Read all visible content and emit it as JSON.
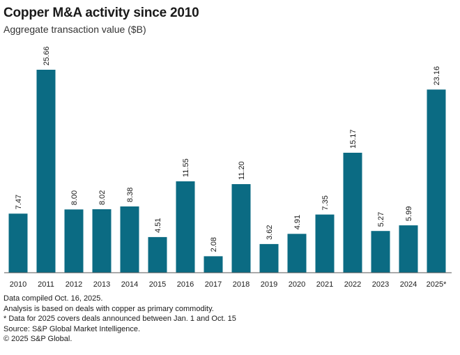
{
  "title": "Copper M&A activity since 2010",
  "subtitle": "Aggregate transaction value ($B)",
  "colors": {
    "bar": "#0b6b83",
    "axis": "#555555",
    "text": "#1a1a1a"
  },
  "chart_data": {
    "type": "bar",
    "title": "Copper M&A activity since 2010",
    "subtitle": "Aggregate transaction value ($B)",
    "xlabel": "",
    "ylabel": "",
    "ylim": [
      0,
      25.66
    ],
    "grid": false,
    "legend": "none",
    "categories": [
      "2010",
      "2011",
      "2012",
      "2013",
      "2014",
      "2015",
      "2016",
      "2017",
      "2018",
      "2019",
      "2020",
      "2021",
      "2022",
      "2023",
      "2024",
      "2025*"
    ],
    "values": [
      7.47,
      25.66,
      8.0,
      8.02,
      8.38,
      4.51,
      11.55,
      2.08,
      11.2,
      3.62,
      4.91,
      7.35,
      15.17,
      5.27,
      5.99,
      23.16
    ],
    "value_labels": [
      "7.47",
      "25.66",
      "8.00",
      "8.02",
      "8.38",
      "4.51",
      "11.55",
      "2.08",
      "11.20",
      "3.62",
      "4.91",
      "7.35",
      "15.17",
      "5.27",
      "5.99",
      "23.16"
    ]
  },
  "footnotes": [
    "Data compiled Oct. 16, 2025.",
    "Analysis is based on deals with copper as primary commodity.",
    "* Data for 2025 covers deals announced between Jan. 1 and Oct. 15",
    "Source: S&P Global Market Intelligence.",
    "© 2025 S&P Global."
  ]
}
